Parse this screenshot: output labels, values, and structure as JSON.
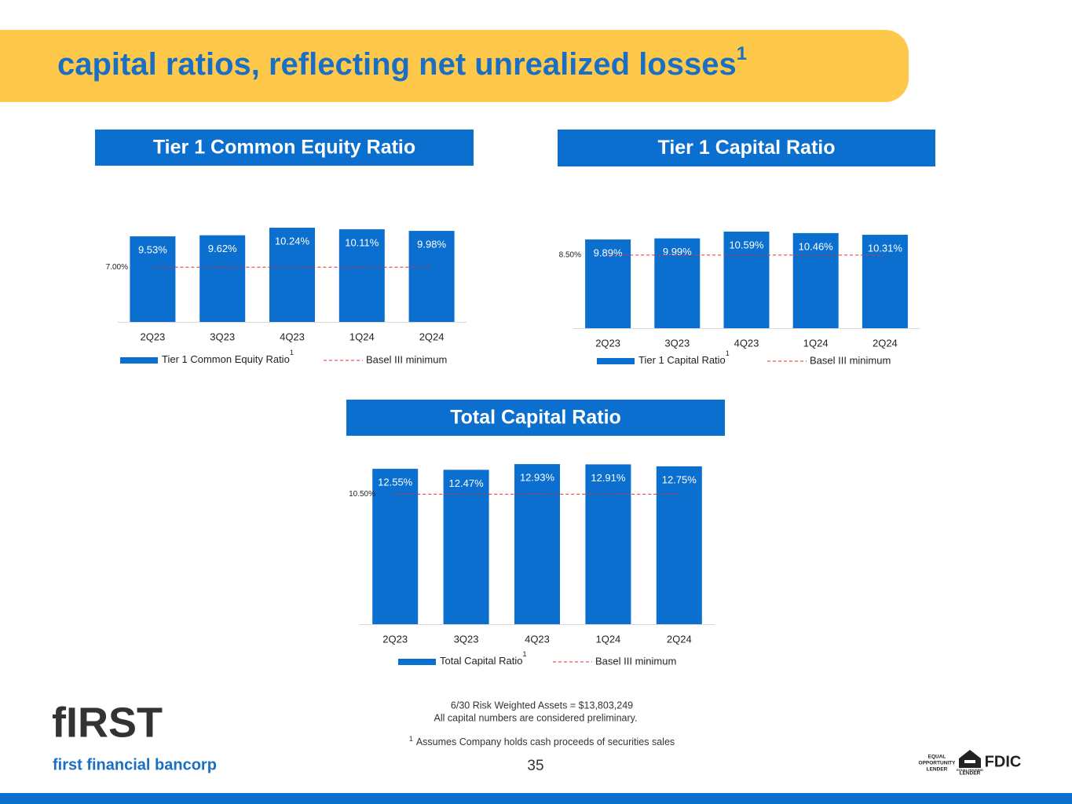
{
  "header": {
    "title": "capital ratios, reflecting net unrealized losses",
    "title_note": "1"
  },
  "chart_data": [
    {
      "type": "bar",
      "title": "Tier 1 Common Equity Ratio",
      "categories": [
        "2Q23",
        "3Q23",
        "4Q23",
        "1Q24",
        "2Q24"
      ],
      "series": [
        {
          "name": "Tier 1 Common Equity Ratio",
          "note": "1",
          "color": "#0b6fcf",
          "values": [
            9.53,
            9.62,
            10.24,
            10.11,
            9.98
          ],
          "value_labels": [
            "9.53%",
            "9.62%",
            "10.24%",
            "10.11%",
            "9.98%"
          ]
        }
      ],
      "reference_line": {
        "name": "Basel III minimum",
        "value": 7.0,
        "label": "7.00%",
        "color": "#e03030"
      },
      "ylim": [
        2.5,
        10.5
      ]
    },
    {
      "type": "bar",
      "title": "Tier 1 Capital Ratio",
      "categories": [
        "2Q23",
        "3Q23",
        "4Q23",
        "1Q24",
        "2Q24"
      ],
      "series": [
        {
          "name": "Tier 1 Capital Ratio",
          "note": "1",
          "color": "#0b6fcf",
          "values": [
            9.89,
            9.99,
            10.59,
            10.46,
            10.31
          ],
          "value_labels": [
            "9.89%",
            "9.99%",
            "10.59%",
            "10.46%",
            "10.31%"
          ]
        }
      ],
      "reference_line": {
        "name": "Basel III minimum",
        "value": 8.5,
        "label": "8.50%",
        "color": "#e03030"
      },
      "ylim": [
        2,
        10.8
      ]
    },
    {
      "type": "bar",
      "title": "Total Capital Ratio",
      "categories": [
        "2Q23",
        "3Q23",
        "4Q23",
        "1Q24",
        "2Q24"
      ],
      "series": [
        {
          "name": "Total Capital Ratio",
          "note": "1",
          "color": "#0b6fcf",
          "values": [
            12.55,
            12.47,
            12.93,
            12.91,
            12.75
          ],
          "value_labels": [
            "12.55%",
            "12.47%",
            "12.93%",
            "12.91%",
            "12.75%"
          ]
        }
      ],
      "reference_line": {
        "name": "Basel III minimum",
        "value": 10.5,
        "label": "10.50%",
        "color": "#e03030"
      },
      "ylim": [
        0,
        13
      ]
    }
  ],
  "footer": {
    "lines": [
      "6/30 Risk Weighted Assets = $13,803,249",
      "All capital numbers are considered preliminary."
    ],
    "footnote_mark": "1",
    "footnote": "Assumes Company holds cash proceeds of securities sales",
    "page": 35
  },
  "logo": {
    "wordmark": "fIRST",
    "name": "first financial bancorp"
  },
  "badges": {
    "eol": [
      "EQUAL",
      "OPPORTUNITY",
      "LENDER"
    ],
    "ehl": [
      "EQUAL HOUSING",
      "LENDER"
    ],
    "fdic": "FDIC"
  }
}
